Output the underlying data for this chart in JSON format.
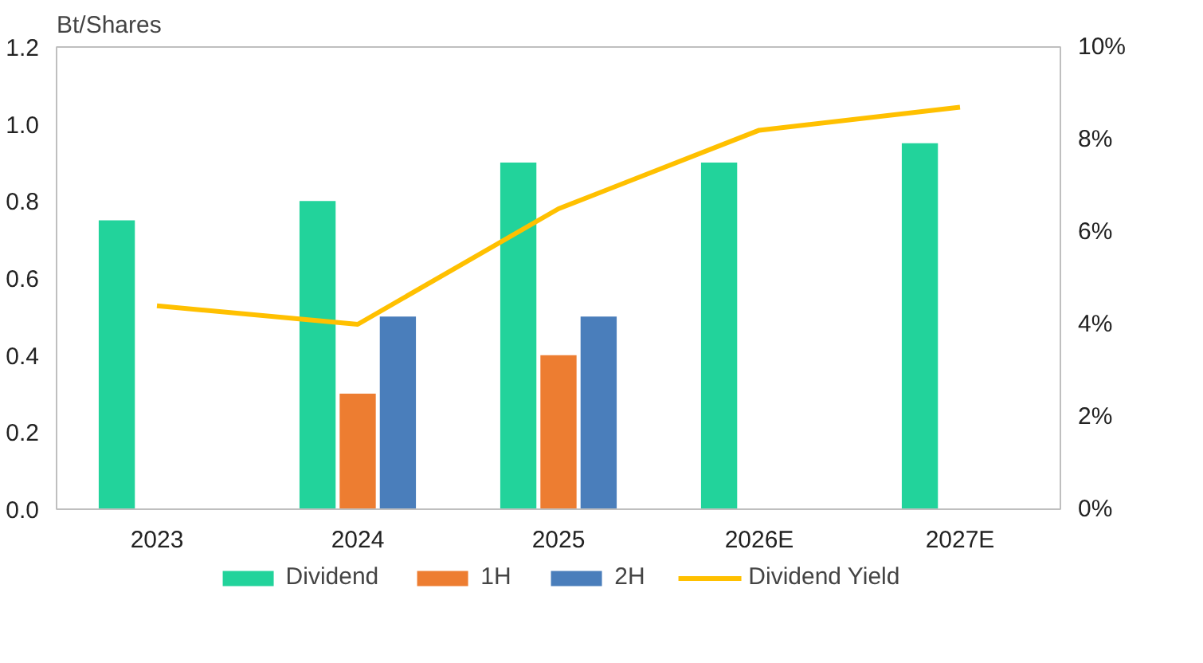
{
  "chart_data": {
    "type": "bar",
    "ylabel": "Bt/Shares",
    "categories": [
      "2023",
      "2024",
      "2025",
      "2026E",
      "2027E"
    ],
    "series": [
      {
        "name": "Dividend",
        "color": "#22d39b",
        "values": [
          0.75,
          0.8,
          0.9,
          0.9,
          0.95
        ]
      },
      {
        "name": "1H",
        "color": "#ed7d31",
        "values": [
          null,
          0.3,
          0.4,
          null,
          null
        ]
      },
      {
        "name": "2H",
        "color": "#4a7ebb",
        "values": [
          null,
          0.5,
          0.5,
          null,
          null
        ]
      },
      {
        "name": "Dividend Yield",
        "type": "line",
        "axis": "y2",
        "color": "#ffc000",
        "values": [
          4.4,
          4.0,
          6.5,
          8.2,
          8.7
        ]
      }
    ],
    "ylim": [
      0,
      1.2
    ],
    "yticks": [
      {
        "value": 0,
        "label": "0.0"
      },
      0.2,
      0.4,
      0.6,
      0.8,
      {
        "value": 1,
        "label": "1.0"
      },
      1.2
    ],
    "y2lim": [
      0,
      10
    ],
    "y2ticks": [
      {
        "value": 0,
        "label": "0%"
      },
      {
        "value": 2,
        "label": "2%"
      },
      {
        "value": 4,
        "label": "4%"
      },
      {
        "value": 6,
        "label": "6%"
      },
      {
        "value": 8,
        "label": "8%"
      },
      {
        "value": 10,
        "label": "10%"
      }
    ],
    "legend": "bottom",
    "grid": false,
    "marker": "none",
    "line_style": "solid"
  }
}
